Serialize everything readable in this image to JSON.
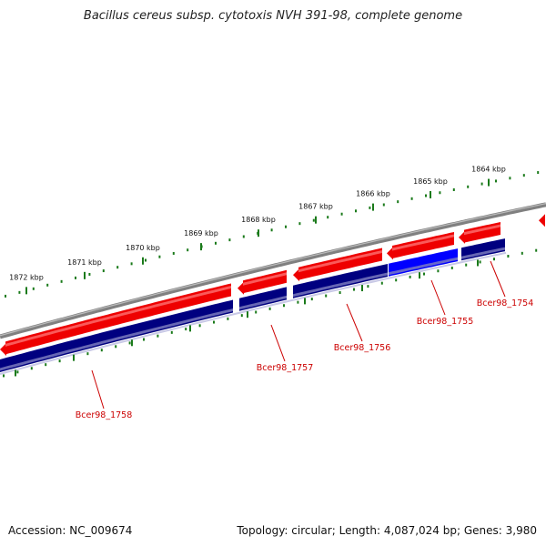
{
  "title": "Bacillus cereus subsp. cytotoxis NVH 391-98, complete genome",
  "footer": {
    "accession_label": "Accession:",
    "accession": "NC_009674",
    "topology_label": "Topology:",
    "topology": "circular",
    "length_label": "Length:",
    "length": "4,087,024 bp",
    "genes_label": "Genes:",
    "genes": "3,980"
  },
  "scale": {
    "unit": "kbp",
    "ticks": [
      1864,
      1865,
      1866,
      1867,
      1868,
      1869,
      1870,
      1871,
      1872
    ]
  },
  "genes": [
    {
      "label": "Bcer98_1754",
      "strand": "reverse",
      "color": "#000080",
      "highlight": false
    },
    {
      "label": "Bcer98_1755",
      "strand": "reverse",
      "color": "#0000ff",
      "highlight": true
    },
    {
      "label": "Bcer98_1756",
      "strand": "reverse",
      "color": "#000080",
      "highlight": false
    },
    {
      "label": "Bcer98_1757",
      "strand": "reverse",
      "color": "#000080",
      "highlight": false
    },
    {
      "label": "Bcer98_1758",
      "strand": "reverse",
      "color": "#000080",
      "highlight": false
    }
  ],
  "colors": {
    "forward_cds": "#ee0000",
    "reverse_cds": "#000080",
    "highlight_cds": "#0000ff",
    "backbone": "#808080",
    "tick": "#1a7a1a",
    "label": "#cc0000"
  }
}
